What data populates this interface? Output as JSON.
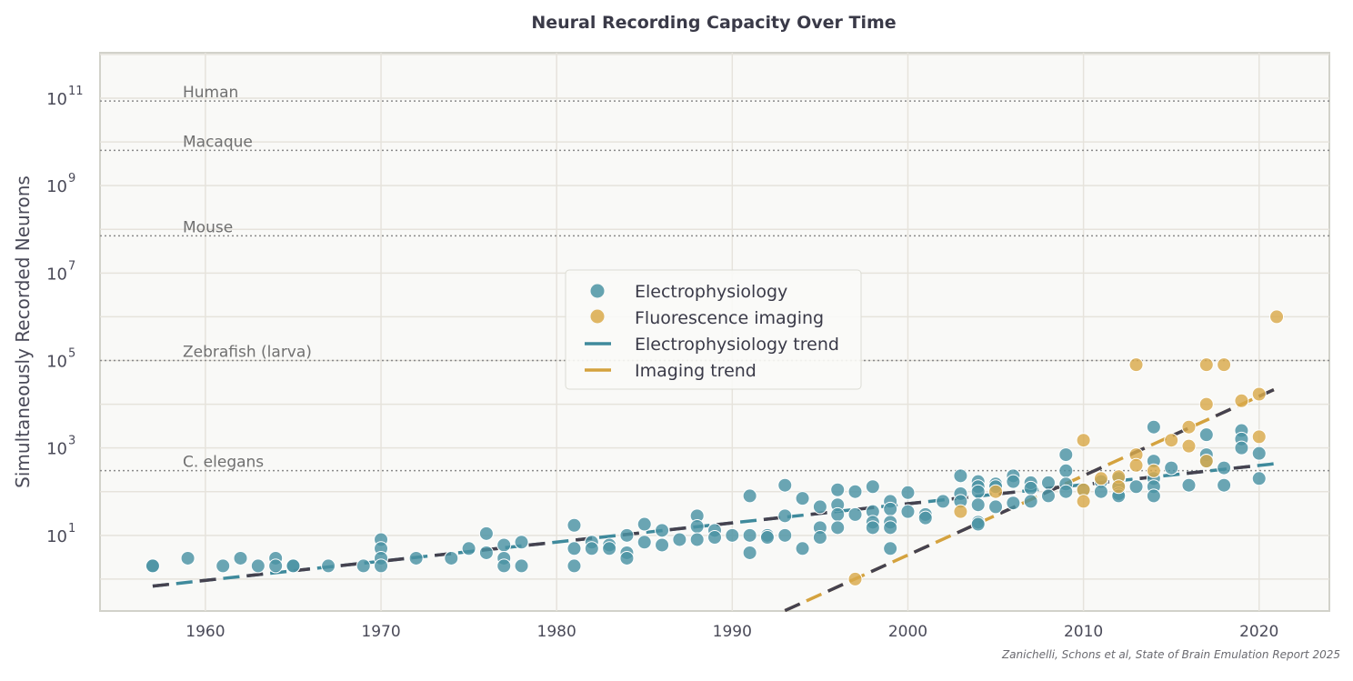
{
  "chart_data": {
    "type": "scatter",
    "title": "Neural Recording Capacity Over Time",
    "xlabel": "",
    "ylabel": "Simultaneously Recorded Neurons",
    "xlim": [
      1954,
      2024
    ],
    "ylim_log10": [
      -0.73,
      12.04
    ],
    "y_scale": "log",
    "grid": true,
    "legend_placement": "center",
    "x_ticks": [
      1960,
      1970,
      1980,
      1990,
      2000,
      2010,
      2020
    ],
    "y_ticks": [
      {
        "base": "10",
        "exp": "1",
        "value": 10
      },
      {
        "base": "10",
        "exp": "3",
        "value": 1000
      },
      {
        "base": "10",
        "exp": "5",
        "value": 100000
      },
      {
        "base": "10",
        "exp": "7",
        "value": 10000000
      },
      {
        "base": "10",
        "exp": "9",
        "value": 1000000000
      },
      {
        "base": "10",
        "exp": "11",
        "value": 100000000000
      }
    ],
    "reference_lines": [
      {
        "label": "Human",
        "value": 86000000000
      },
      {
        "label": "Macaque",
        "value": 6400000000
      },
      {
        "label": "Mouse",
        "value": 71000000
      },
      {
        "label": "Zebrafish (larva)",
        "value": 100000
      },
      {
        "label": "C. elegans",
        "value": 302
      }
    ],
    "series": [
      {
        "name": "Electrophysiology",
        "kind": "scatter",
        "color": "#4a93a3",
        "points": [
          [
            1957,
            2
          ],
          [
            1957,
            2
          ],
          [
            1959,
            3
          ],
          [
            1961,
            2
          ],
          [
            1962,
            3
          ],
          [
            1963,
            2
          ],
          [
            1964,
            3
          ],
          [
            1964,
            2
          ],
          [
            1965,
            2
          ],
          [
            1965,
            2
          ],
          [
            1967,
            2
          ],
          [
            1969,
            2
          ],
          [
            1970,
            8
          ],
          [
            1970,
            5
          ],
          [
            1970,
            3
          ],
          [
            1970,
            2
          ],
          [
            1972,
            3
          ],
          [
            1974,
            3
          ],
          [
            1975,
            5
          ],
          [
            1976,
            11
          ],
          [
            1976,
            4
          ],
          [
            1977,
            6
          ],
          [
            1977,
            3
          ],
          [
            1977,
            2
          ],
          [
            1978,
            7
          ],
          [
            1978,
            2
          ],
          [
            1981,
            17
          ],
          [
            1981,
            5
          ],
          [
            1981,
            2
          ],
          [
            1982,
            7
          ],
          [
            1982,
            5
          ],
          [
            1983,
            6
          ],
          [
            1983,
            5
          ],
          [
            1984,
            10
          ],
          [
            1984,
            4
          ],
          [
            1984,
            3
          ],
          [
            1985,
            18
          ],
          [
            1985,
            7
          ],
          [
            1986,
            13
          ],
          [
            1986,
            6
          ],
          [
            1987,
            8
          ],
          [
            1988,
            28
          ],
          [
            1988,
            16
          ],
          [
            1988,
            8
          ],
          [
            1989,
            13
          ],
          [
            1989,
            9
          ],
          [
            1990,
            10
          ],
          [
            1991,
            80
          ],
          [
            1991,
            10
          ],
          [
            1991,
            4
          ],
          [
            1992,
            10
          ],
          [
            1992,
            9
          ],
          [
            1993,
            140
          ],
          [
            1993,
            28
          ],
          [
            1993,
            10
          ],
          [
            1994,
            70
          ],
          [
            1994,
            5
          ],
          [
            1995,
            45
          ],
          [
            1995,
            15
          ],
          [
            1995,
            9
          ],
          [
            1996,
            110
          ],
          [
            1996,
            50
          ],
          [
            1996,
            30
          ],
          [
            1996,
            15
          ],
          [
            1997,
            100
          ],
          [
            1997,
            30
          ],
          [
            1998,
            130
          ],
          [
            1998,
            35
          ],
          [
            1998,
            20
          ],
          [
            1998,
            15
          ],
          [
            1999,
            60
          ],
          [
            1999,
            40
          ],
          [
            1999,
            20
          ],
          [
            1999,
            15
          ],
          [
            1999,
            5
          ],
          [
            2000,
            95
          ],
          [
            2000,
            35
          ],
          [
            2001,
            30
          ],
          [
            2001,
            25
          ],
          [
            2002,
            60
          ],
          [
            2003,
            230
          ],
          [
            2003,
            90
          ],
          [
            2003,
            60
          ],
          [
            2004,
            170
          ],
          [
            2004,
            130
          ],
          [
            2004,
            100
          ],
          [
            2004,
            50
          ],
          [
            2004,
            20
          ],
          [
            2004,
            18
          ],
          [
            2005,
            150
          ],
          [
            2005,
            130
          ],
          [
            2005,
            45
          ],
          [
            2006,
            230
          ],
          [
            2006,
            170
          ],
          [
            2006,
            55
          ],
          [
            2007,
            160
          ],
          [
            2007,
            120
          ],
          [
            2007,
            60
          ],
          [
            2008,
            160
          ],
          [
            2008,
            80
          ],
          [
            2009,
            700
          ],
          [
            2009,
            300
          ],
          [
            2009,
            150
          ],
          [
            2009,
            100
          ],
          [
            2010,
            110
          ],
          [
            2011,
            170
          ],
          [
            2011,
            100
          ],
          [
            2012,
            200
          ],
          [
            2012,
            130
          ],
          [
            2012,
            90
          ],
          [
            2012,
            80
          ],
          [
            2013,
            130
          ],
          [
            2014,
            3000
          ],
          [
            2014,
            500
          ],
          [
            2014,
            200
          ],
          [
            2014,
            130
          ],
          [
            2014,
            80
          ],
          [
            2015,
            350
          ],
          [
            2016,
            140
          ],
          [
            2017,
            2000
          ],
          [
            2017,
            700
          ],
          [
            2017,
            500
          ],
          [
            2018,
            350
          ],
          [
            2018,
            140
          ],
          [
            2019,
            2500
          ],
          [
            2019,
            1600
          ],
          [
            2019,
            1000
          ],
          [
            2020,
            750
          ],
          [
            2020,
            200
          ]
        ]
      },
      {
        "name": "Fluorescence imaging",
        "kind": "scatter",
        "color": "#d9a94a",
        "points": [
          [
            1997,
            1
          ],
          [
            2003,
            35
          ],
          [
            2005,
            100
          ],
          [
            2010,
            1500
          ],
          [
            2010,
            110
          ],
          [
            2010,
            60
          ],
          [
            2011,
            200
          ],
          [
            2012,
            220
          ],
          [
            2012,
            130
          ],
          [
            2013,
            80000
          ],
          [
            2013,
            700
          ],
          [
            2013,
            400
          ],
          [
            2014,
            300
          ],
          [
            2015,
            1500
          ],
          [
            2016,
            3000
          ],
          [
            2016,
            1100
          ],
          [
            2017,
            80000
          ],
          [
            2017,
            10000
          ],
          [
            2017,
            500
          ],
          [
            2018,
            80000
          ],
          [
            2019,
            12000
          ],
          [
            2020,
            17000
          ],
          [
            2020,
            1800
          ],
          [
            2021,
            1000000
          ]
        ]
      },
      {
        "name": "Electrophysiology trend",
        "kind": "line",
        "color": "#3f8a9c",
        "x": [
          1957,
          2021
        ],
        "y": [
          0.69,
          440
        ]
      },
      {
        "name": "Imaging trend",
        "kind": "line",
        "color": "#d4a23e",
        "x": [
          1993,
          2021
        ],
        "y": [
          0.19,
          23000
        ]
      }
    ]
  },
  "footnote": "Zanichelli, Schons et al, State of Brain Emulation Report 2025"
}
